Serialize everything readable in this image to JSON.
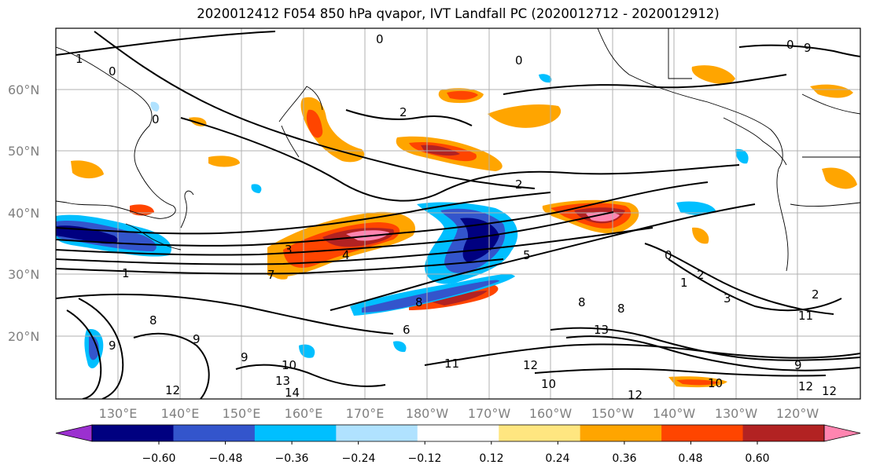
{
  "title": "2020012412 F054 850 hPa qvapor, IVT Landfall PC (2020012712 - 2020012912)",
  "lat_labels": [
    "60°N",
    "50°N",
    "40°N",
    "30°N",
    "20°N"
  ],
  "lon_labels": [
    "130°E",
    "140°E",
    "150°E",
    "160°E",
    "170°E",
    "180°W",
    "170°W",
    "160°W",
    "150°W",
    "140°W",
    "130°W",
    "120°W"
  ],
  "colorbar": {
    "ticks": [
      "−0.60",
      "−0.48",
      "−0.36",
      "−0.24",
      "−0.12",
      "0.12",
      "0.24",
      "0.36",
      "0.48",
      "0.60"
    ],
    "colors": [
      "#9b30d0",
      "#000080",
      "#3355cc",
      "#00bfff",
      "#b0e2ff",
      "#ffffff",
      "#ffe680",
      "#ffa500",
      "#ff4500",
      "#b22222",
      "#ff85b0"
    ]
  },
  "contour_labels": [
    "0",
    "1",
    "2",
    "3",
    "4",
    "5",
    "6",
    "7",
    "8",
    "9",
    "10",
    "11",
    "12",
    "13",
    "14"
  ],
  "colors": {
    "label": "#808080",
    "grid": "#b0b0b0"
  }
}
